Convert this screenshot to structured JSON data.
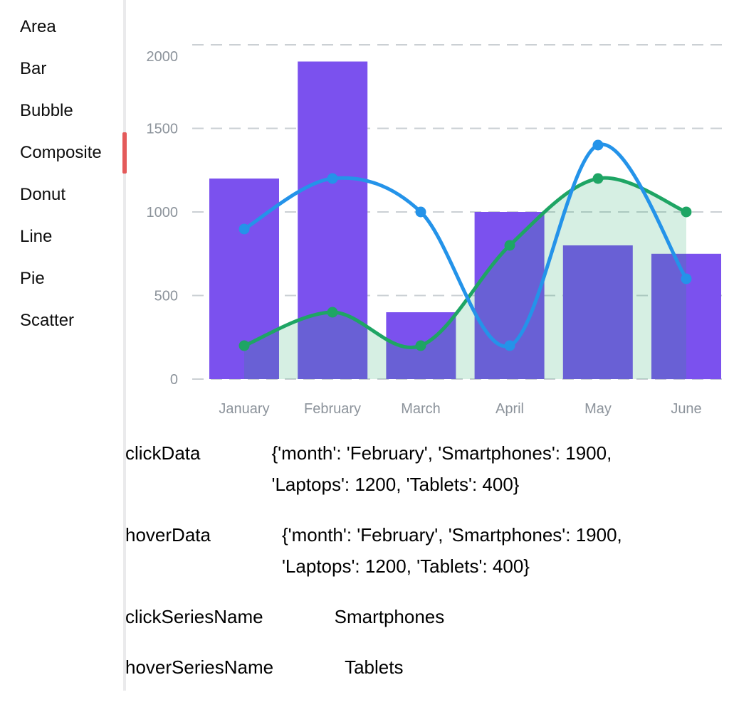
{
  "sidebar": {
    "accent_color": "#e45a5a",
    "items": [
      {
        "label": "Area",
        "selected": false
      },
      {
        "label": "Bar",
        "selected": false
      },
      {
        "label": "Bubble",
        "selected": false
      },
      {
        "label": "Composite",
        "selected": true
      },
      {
        "label": "Donut",
        "selected": false
      },
      {
        "label": "Line",
        "selected": false
      },
      {
        "label": "Pie",
        "selected": false
      },
      {
        "label": "Scatter",
        "selected": false
      }
    ]
  },
  "output_rows": [
    {
      "label": "clickData",
      "value": "{'month': 'February', 'Smartphones': 1900, 'Laptops': 1200, 'Tablets': 400}"
    },
    {
      "label": "hoverData",
      "value": "{'month': 'February', 'Smartphones': 1900, 'Laptops': 1200, 'Tablets': 400}"
    },
    {
      "label": "clickSeriesName",
      "value": "Smartphones"
    },
    {
      "label": "hoverSeriesName",
      "value": "Tablets"
    }
  ],
  "chart_data": {
    "type": "composite",
    "categories": [
      "January",
      "February",
      "March",
      "April",
      "May",
      "June"
    ],
    "series": [
      {
        "name": "Smartphones",
        "type": "bar",
        "color": "#7b51ee",
        "values": [
          1200,
          1900,
          400,
          1000,
          800,
          750
        ]
      },
      {
        "name": "Laptops",
        "type": "line",
        "color": "#2493e9",
        "values": [
          900,
          1200,
          1000,
          200,
          1400,
          600
        ]
      },
      {
        "name": "Tablets",
        "type": "area-line",
        "color": "#1ea564",
        "fill": "rgba(30,165,100,0.18)",
        "values": [
          200,
          400,
          200,
          800,
          1200,
          1000
        ]
      }
    ],
    "y_ticks": [
      0,
      500,
      1000,
      1500,
      2000
    ],
    "ylim": [
      0,
      2000
    ],
    "xlabel": "",
    "ylabel": "",
    "grid": "horizontal-dashed",
    "legend": "none",
    "grid_color": "#cbd0d4",
    "axis_label_color": "#8c939b"
  }
}
